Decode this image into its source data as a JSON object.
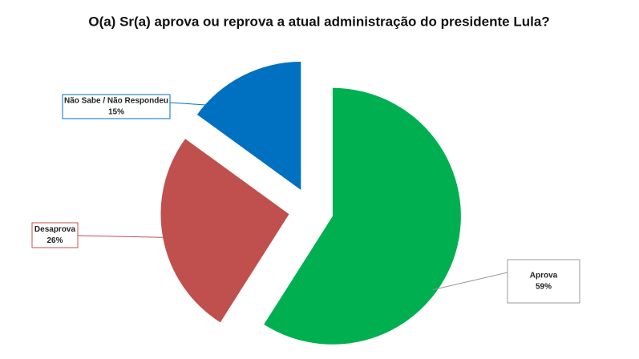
{
  "chart_data": {
    "type": "pie",
    "title": "O(a) Sr(a) aprova ou reprova a atual administração do presidente Lula?",
    "categories": [
      "Aprova",
      "Desaprova",
      "Não Sabe / Não Respondeu"
    ],
    "values": [
      59,
      26,
      15
    ],
    "value_labels": [
      "59%",
      "26%",
      "15%"
    ],
    "colors": [
      "#00b050",
      "#c0504d",
      "#0070c0"
    ],
    "exploded": true
  }
}
